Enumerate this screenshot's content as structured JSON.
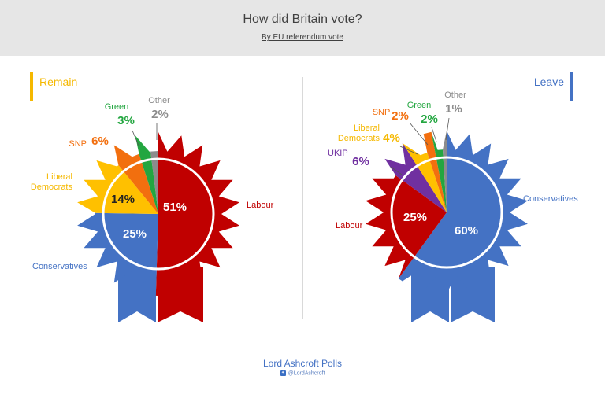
{
  "header": {
    "title": "How did Britain vote?",
    "subtitle": "By EU referendum vote"
  },
  "footer": {
    "brand": "Lord Ashcroft Polls",
    "handle": "@LordAshcroft",
    "twitter_icon": "twitter-bird-icon"
  },
  "colors": {
    "remain_accent": "#f5b800",
    "leave_accent": "#4472c4"
  },
  "chart_data": [
    {
      "type": "pie",
      "title": "Remain",
      "slices": [
        {
          "label": "Labour",
          "value": 51,
          "display": "51%",
          "color": "#c00000"
        },
        {
          "label": "Conservatives",
          "value": 25,
          "display": "25%",
          "color": "#4472c4"
        },
        {
          "label": "Liberal Democrats",
          "value": 14,
          "display": "14%",
          "color": "#ffc000"
        },
        {
          "label": "SNP",
          "value": 6,
          "display": "6%",
          "color": "#f26f0f"
        },
        {
          "label": "Green",
          "value": 3,
          "display": "3%",
          "color": "#23a640"
        },
        {
          "label": "Other",
          "value": 2,
          "display": "2%",
          "color": "#8c8c8c"
        }
      ]
    },
    {
      "type": "pie",
      "title": "Leave",
      "slices": [
        {
          "label": "Conservatives",
          "value": 60,
          "display": "60%",
          "color": "#4472c4"
        },
        {
          "label": "Labour",
          "value": 25,
          "display": "25%",
          "color": "#c00000"
        },
        {
          "label": "UKIP",
          "value": 6,
          "display": "6%",
          "color": "#7030a0"
        },
        {
          "label": "Liberal Democrats",
          "value": 4,
          "display": "4%",
          "color": "#ffc000"
        },
        {
          "label": "SNP",
          "value": 2,
          "display": "2%",
          "color": "#f26f0f"
        },
        {
          "label": "Green",
          "value": 2,
          "display": "2%",
          "color": "#23a640"
        },
        {
          "label": "Other",
          "value": 1,
          "display": "1%",
          "color": "#8c8c8c"
        }
      ]
    }
  ]
}
